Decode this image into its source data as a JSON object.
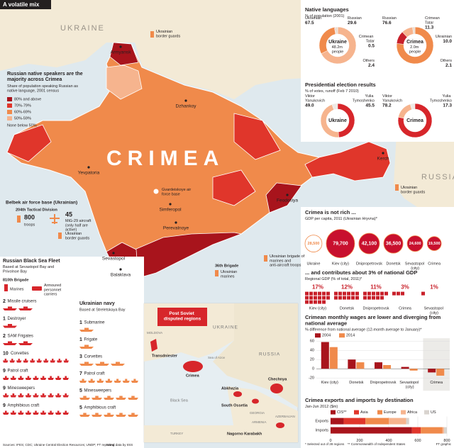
{
  "header": {
    "title": "A volatile mix"
  },
  "map": {
    "country_north": "UKRAINE",
    "country_east": "RUSSIA",
    "region": "CRIMEA",
    "places": {
      "armyansk": "Armyansk",
      "dzhankoy": "Dzhankoy",
      "yevpatoria": "Yevpatoria",
      "gvardeiskoye": "Gvardeiskoye air force base",
      "simferopol": "Simferopol",
      "feodosiya": "Feodosiya",
      "kerch": "Kerch",
      "perevalnoye": "Perevalnoye",
      "sevastopol": "Sevastopol",
      "balaklava": "Balaklava"
    },
    "notes": {
      "border_guards_north": "Ukrainian border guards",
      "border_guards_kerch": "Ukrainian border guards",
      "feodosiya_brigade": "Ukrainian brigade of marines and anti-aircraft troops",
      "brigade_36": "36th Brigade",
      "marines": "Ukrainian marines"
    }
  },
  "legend": {
    "title": "Russian native speakers are the majority across Crimea",
    "subtitle": "Share of population speaking Russian as native language, 2001 census",
    "items": [
      {
        "label": "80% and above",
        "color": "#a8141c"
      },
      {
        "label": "70%-79%",
        "color": "#e0362b"
      },
      {
        "label": "60%-69%",
        "color": "#f08a4b"
      },
      {
        "label": "50%-59%",
        "color": "#f6b48e"
      }
    ],
    "note": "None below 50%"
  },
  "belbek": {
    "title": "Belbek air force base (Ukrainian)",
    "unit": "204th Tactical Division",
    "troops": 800,
    "troops_label": "troops",
    "aircraft": 45,
    "aircraft_label": "MiG-29 aircraft (only half are active)",
    "border_guards": "Ukrainian border guards"
  },
  "russian_fleet": {
    "title": "Russian Black Sea Fleet",
    "subtitle": "Based at Sevastopol Bay and Privolnoe Bay",
    "brigade": "810th Brigade",
    "marines": "Marines",
    "apc": "Armoured personnel carriers",
    "color": "#d7262b",
    "ships": [
      {
        "count": 2,
        "label": "Missile cruisers"
      },
      {
        "count": 1,
        "label": "Destroyer"
      },
      {
        "count": 2,
        "label": "SAM Frigates"
      },
      {
        "count": 10,
        "label": "Corvettes"
      },
      {
        "count": 9,
        "label": "Patrol craft"
      },
      {
        "count": 9,
        "label": "Minesweepers"
      },
      {
        "count": 9,
        "label": "Amphibious craft"
      }
    ]
  },
  "ukrainian_navy": {
    "title": "Ukrainian navy",
    "subtitle": "Based at Streletskaya Bay",
    "color": "#f08a4b",
    "ships": [
      {
        "count": 1,
        "label": "Submarine"
      },
      {
        "count": 1,
        "label": "Frigate"
      },
      {
        "count": 3,
        "label": "Corvettes"
      },
      {
        "count": 7,
        "label": "Patrol craft"
      },
      {
        "count": 5,
        "label": "Minesweepers"
      },
      {
        "count": 5,
        "label": "Amphibious craft"
      }
    ]
  },
  "inset": {
    "title": "Post Soviet disputed regions",
    "ukraine": "UKRAINE",
    "russia": "RUSSIA",
    "moldova": "MOLDOVA",
    "transdniester": "Transdniester",
    "crimea": "Crimea",
    "sea_of_azov": "Sea of Azov",
    "black_sea": "Black Sea",
    "chechnya": "Chechnya",
    "abkhazia": "Abkhazia",
    "south_ossetia": "South Ossetia",
    "georgia": "GEORGIA",
    "armenia": "ARMENIA",
    "azerbaijan": "AZERBAIJAN",
    "nagorno_karabakh": "Nagorno Karabakh",
    "turkey": "TURKEY"
  },
  "chart_data": [
    {
      "type": "pie",
      "title": "Native languages",
      "subtitle": "% of population (2001)",
      "center_label": "Ukraine",
      "center_sublabel": "48.2m people",
      "categories": [
        "Ukrainian",
        "Russian",
        "Crimean Tatar",
        "Others"
      ],
      "values": [
        67.5,
        29.6,
        0.5,
        2.4
      ],
      "value_labels": [
        "67.5",
        "29.6",
        "0.5",
        "2.4"
      ],
      "colors": [
        "#f6b48e",
        "#f08a4b",
        "#c8202a",
        "#e9dccf"
      ]
    },
    {
      "type": "pie",
      "center_label": "Crimea",
      "center_sublabel": "2.0m people",
      "categories": [
        "Russian",
        "Crimean Tatar",
        "Ukrainian",
        "Others"
      ],
      "values": [
        76.6,
        11.3,
        10.0,
        2.1
      ],
      "value_labels": [
        "76.6",
        "11.3",
        "10.0",
        "2.1"
      ],
      "colors": [
        "#f08a4b",
        "#c8202a",
        "#f6b48e",
        "#e9dccf"
      ]
    },
    {
      "type": "pie",
      "title": "Presidential election results",
      "subtitle": "% of votes, runoff (Feb 7 2010)",
      "center_label": "Ukraine",
      "categories": [
        "Viktor Yanukovich",
        "Yulia Tymoshenko"
      ],
      "values": [
        49.0,
        45.5
      ],
      "value_labels": [
        "49.0",
        "45.5"
      ],
      "colors": [
        "#d7262b",
        "#f6b48e"
      ]
    },
    {
      "type": "pie",
      "center_label": "Crimea",
      "categories": [
        "Viktor Yanukovich",
        "Yulia Tymoshenko"
      ],
      "values": [
        78.2,
        17.3
      ],
      "value_labels": [
        "78.2",
        "17.3"
      ],
      "colors": [
        "#d7262b",
        "#f6b48e"
      ]
    },
    {
      "type": "bubble",
      "title": "Crimea is not rich ...",
      "subtitle": "GDP per capita, 2011 (Ukrainian Hryvna)*",
      "categories": [
        "Ukraine",
        "Kiev (city)",
        "Dnipropetrovsk",
        "Donetsk",
        "Sevastopol (city)",
        "Crimea"
      ],
      "values": [
        28500,
        79700,
        42100,
        36500,
        24600,
        19500
      ],
      "value_labels": [
        "28,500",
        "79,700",
        "42,100",
        "36,500",
        "24,600",
        "19,500"
      ],
      "colors": [
        "#ffffff",
        "#c8102e",
        "#c8102e",
        "#c8102e",
        "#c8102e",
        "#c8102e"
      ],
      "outline": "#f08a4b"
    },
    {
      "type": "waffle",
      "title": "... and contributes about 3% of national GDP",
      "subtitle": "Regional GDP (% of total, 2011)*",
      "categories": [
        "Kiev (city)",
        "Donetsk",
        "Dnipropetrovsk",
        "Crimea",
        "Sevastopol (city)"
      ],
      "values": [
        17,
        12,
        11,
        3,
        1
      ],
      "value_labels": [
        "17%",
        "12%",
        "11%",
        "3%",
        "1%"
      ],
      "color": "#c8202a"
    },
    {
      "type": "bar",
      "title": "Crimean monthly wages are lower and diverging from national average",
      "subtitle": "% difference from national average (12-month average to January)*",
      "categories": [
        "Kiev (city)",
        "Donetsk",
        "Dnipropetrovsk",
        "Sevastopol (city)",
        "Crimea"
      ],
      "series": [
        {
          "name": "2004",
          "color": "#a8141c",
          "values": [
            58,
            20,
            14,
            4,
            -8
          ]
        },
        {
          "name": "2014",
          "color": "#f08a4b",
          "values": [
            47,
            14,
            8,
            -4,
            -15
          ]
        }
      ],
      "ylim": [
        -20,
        60
      ],
      "yticks": [
        -20,
        0,
        20,
        40,
        60
      ],
      "grid": true
    },
    {
      "type": "barh_stacked",
      "title": "Crimea exports and imports by destination",
      "subtitle": "Jan-Jun 2012 ($m)",
      "categories": [
        "Exports",
        "Imports"
      ],
      "series": [
        {
          "name": "CIS**",
          "color": "#a8141c",
          "values": [
            90,
            560
          ]
        },
        {
          "name": "Asia",
          "color": "#e0362b",
          "values": [
            150,
            60
          ]
        },
        {
          "name": "Europe",
          "color": "#f08a4b",
          "values": [
            160,
            150
          ]
        },
        {
          "name": "Africa",
          "color": "#f6b48e",
          "values": [
            120,
            10
          ]
        },
        {
          "name": "US",
          "color": "#d9d4cf",
          "values": [
            20,
            20
          ]
        }
      ],
      "xlim": [
        0,
        800
      ],
      "xticks": [
        0,
        200,
        400,
        600,
        800
      ],
      "grid": true
    }
  ],
  "footer": {
    "sources": "Sources: IFES; CDC; Ukraine Central Election Resources; UNDP; FT reporting",
    "naval": "Naval data by IISS",
    "note_regions": "* Selected out of 28 regions",
    "note_cis": "** Commonwealth of Independent States",
    "credit": "FT graphic"
  }
}
